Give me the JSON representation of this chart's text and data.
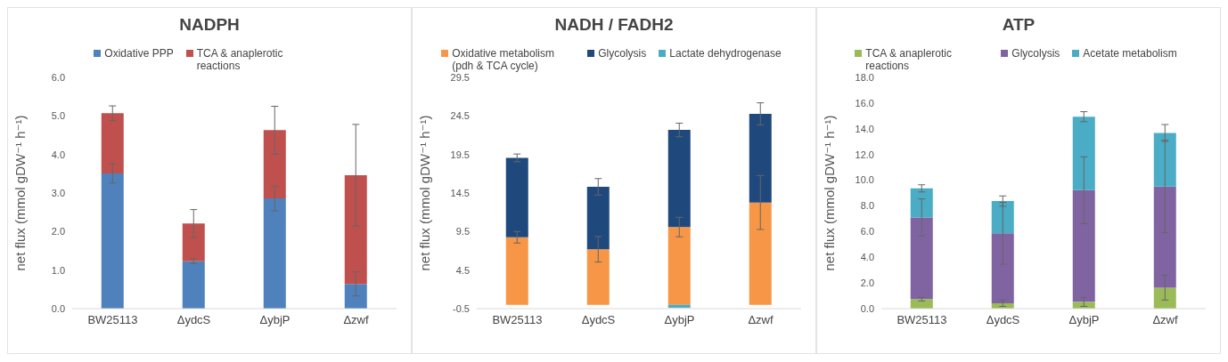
{
  "chart_data": [
    {
      "type": "bar",
      "title": "NADPH",
      "ylabel": "net flux (mmol gDW⁻¹ h⁻¹)",
      "categories": [
        "BW25113",
        "ΔydcS",
        "ΔybjP",
        "Δzwf"
      ],
      "stacked": true,
      "legend": "top",
      "grid": false,
      "series": [
        {
          "name": "Oxidative PPP",
          "color": "#4f81bd",
          "values": [
            3.51,
            1.23,
            2.86,
            0.64
          ],
          "errors": [
            0.25,
            0.06,
            0.32,
            0.31
          ]
        },
        {
          "name": "TCA & anaplerotic reactions",
          "color": "#c0504d",
          "values": [
            1.56,
            0.98,
            1.77,
            2.82
          ],
          "errors": [
            0.19,
            0.36,
            0.62,
            1.32
          ]
        }
      ],
      "ylim": [
        0,
        6
      ],
      "yticks": [
        {
          "value": 0,
          "label": "0.0"
        },
        {
          "value": 1,
          "label": "1.0"
        },
        {
          "value": 2,
          "label": "2.0"
        },
        {
          "value": 3,
          "label": "3.0"
        },
        {
          "value": 4,
          "label": "4.0"
        },
        {
          "value": 5,
          "label": "5.0"
        },
        {
          "value": 6,
          "label": "6.0"
        }
      ]
    },
    {
      "type": "bar",
      "title": "NADH / FADH2",
      "ylabel": "net flux (mmol gDW⁻¹ h⁻¹)",
      "categories": [
        "BW25113",
        "ΔydcS",
        "ΔybjP",
        "Δzwf"
      ],
      "stacked": true,
      "legend": "top",
      "grid": false,
      "series": [
        {
          "name": "Oxidative metabolism (pdh & TCA cycle)",
          "color": "#f79646",
          "values": [
            8.76,
            7.2,
            10.08,
            13.27
          ],
          "errors": [
            0.75,
            1.65,
            1.26,
            3.5
          ]
        },
        {
          "name": "Glycolysis",
          "color": "#1f497d",
          "values": [
            10.3,
            8.1,
            12.6,
            11.5
          ],
          "errors": [
            0.5,
            1.07,
            0.88,
            1.43
          ]
        },
        {
          "name": "Lactate dehydrogenase",
          "color": "#4bacc6",
          "values": [
            0,
            0,
            -0.4,
            0
          ]
        }
      ],
      "ylim": [
        -0.5,
        29.5
      ],
      "yticks": [
        -0.5,
        4.5,
        9.5,
        14.5,
        19.5,
        24.5,
        29.5
      ]
    },
    {
      "type": "bar",
      "title": "ATP",
      "ylabel": "net flux (mmol gDW⁻¹ h⁻¹)",
      "categories": [
        "BW25113",
        "ΔydcS",
        "ΔybjP",
        "Δzwf"
      ],
      "stacked": true,
      "legend": "top",
      "grid": false,
      "series": [
        {
          "name": "TCA & anaplerotic reactions",
          "color": "#9bbb59",
          "values": [
            0.74,
            0.42,
            0.53,
            1.63
          ],
          "errors": [
            0.14,
            0.25,
            0.35,
            0.96
          ]
        },
        {
          "name": "Glycolysis",
          "color": "#8064a2",
          "values": [
            6.36,
            5.45,
            8.69,
            7.88
          ],
          "errors": [
            1.44,
            2.4,
            2.6,
            3.6
          ]
        },
        {
          "name": "Acetate metabolism",
          "color": "#4bacc6",
          "values": [
            2.26,
            2.5,
            5.72,
            4.16
          ],
          "errors": [
            0.28,
            0.4,
            0.39,
            0.66
          ]
        }
      ],
      "ylim": [
        0,
        18
      ],
      "yticks": [
        {
          "value": 0,
          "label": "0.0"
        },
        {
          "value": 2,
          "label": "2.0"
        },
        {
          "value": 4,
          "label": "4.0"
        },
        {
          "value": 6,
          "label": "6.0"
        },
        {
          "value": 8,
          "label": "8.0"
        },
        {
          "value": 10,
          "label": "10.0"
        },
        {
          "value": 12,
          "label": "12.0"
        },
        {
          "value": 14,
          "label": "14.0"
        },
        {
          "value": 16,
          "label": "16.0"
        },
        {
          "value": 18,
          "label": "18.0"
        }
      ]
    }
  ]
}
